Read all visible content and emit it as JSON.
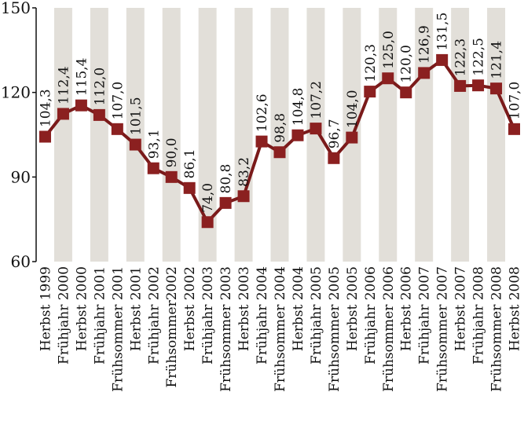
{
  "chart_data": {
    "type": "line",
    "title": "",
    "xlabel": "",
    "ylabel": "",
    "ylim": [
      60,
      150
    ],
    "yticks": [
      60,
      90,
      120,
      150
    ],
    "grid": false,
    "alternating_column_bands": true,
    "colors": {
      "line": "#7a1a1a",
      "marker": "#8b2020",
      "band": "#e2dfd9"
    },
    "categories": [
      "Herbst 1999",
      "Frühjahr 2000",
      "Herbst 2000",
      "Frühjahr 2001",
      "Frühsommer 2001",
      "Herbst 2001",
      "Frühjahr 2002",
      "Frühsommer2002",
      "Herbst 2002",
      "Frühjahr 2003",
      "Frühsommer 2003",
      "Herbst 2003",
      "Frühjahr 2004",
      "Frühsommer 2004",
      "Herbst 2004",
      "Frühjahr 2005",
      "Frühsommer 2005",
      "Herbst 2005",
      "Frühjahr 2006",
      "Frühsommer 2006",
      "Herbst 2006",
      "Frühjahr 2007",
      "Frühsommer 2007",
      "Herbst 2007",
      "Frühjahr 2008",
      "Frühsommer 2008",
      "Herbst 2008"
    ],
    "values": [
      104.3,
      112.4,
      115.4,
      112.0,
      107.0,
      101.5,
      93.1,
      90.0,
      86.1,
      74.0,
      80.8,
      83.2,
      102.6,
      98.8,
      104.8,
      107.2,
      96.7,
      104.0,
      120.3,
      125.0,
      120.0,
      126.9,
      131.5,
      122.3,
      122.5,
      121.4,
      107.0
    ],
    "value_labels": [
      "104,3",
      "112,4",
      "115,4",
      "112,0",
      "107,0",
      "101,5",
      "93,1",
      "90,0",
      "86,1",
      "74,0",
      "80,8",
      "83,2",
      "102,6",
      "98,8",
      "104,8",
      "107,2",
      "96,7",
      "104,0",
      "120,3",
      "125,0",
      "120,0",
      "126,9",
      "131,5",
      "122,3",
      "122,5",
      "121,4",
      "107,0"
    ]
  }
}
